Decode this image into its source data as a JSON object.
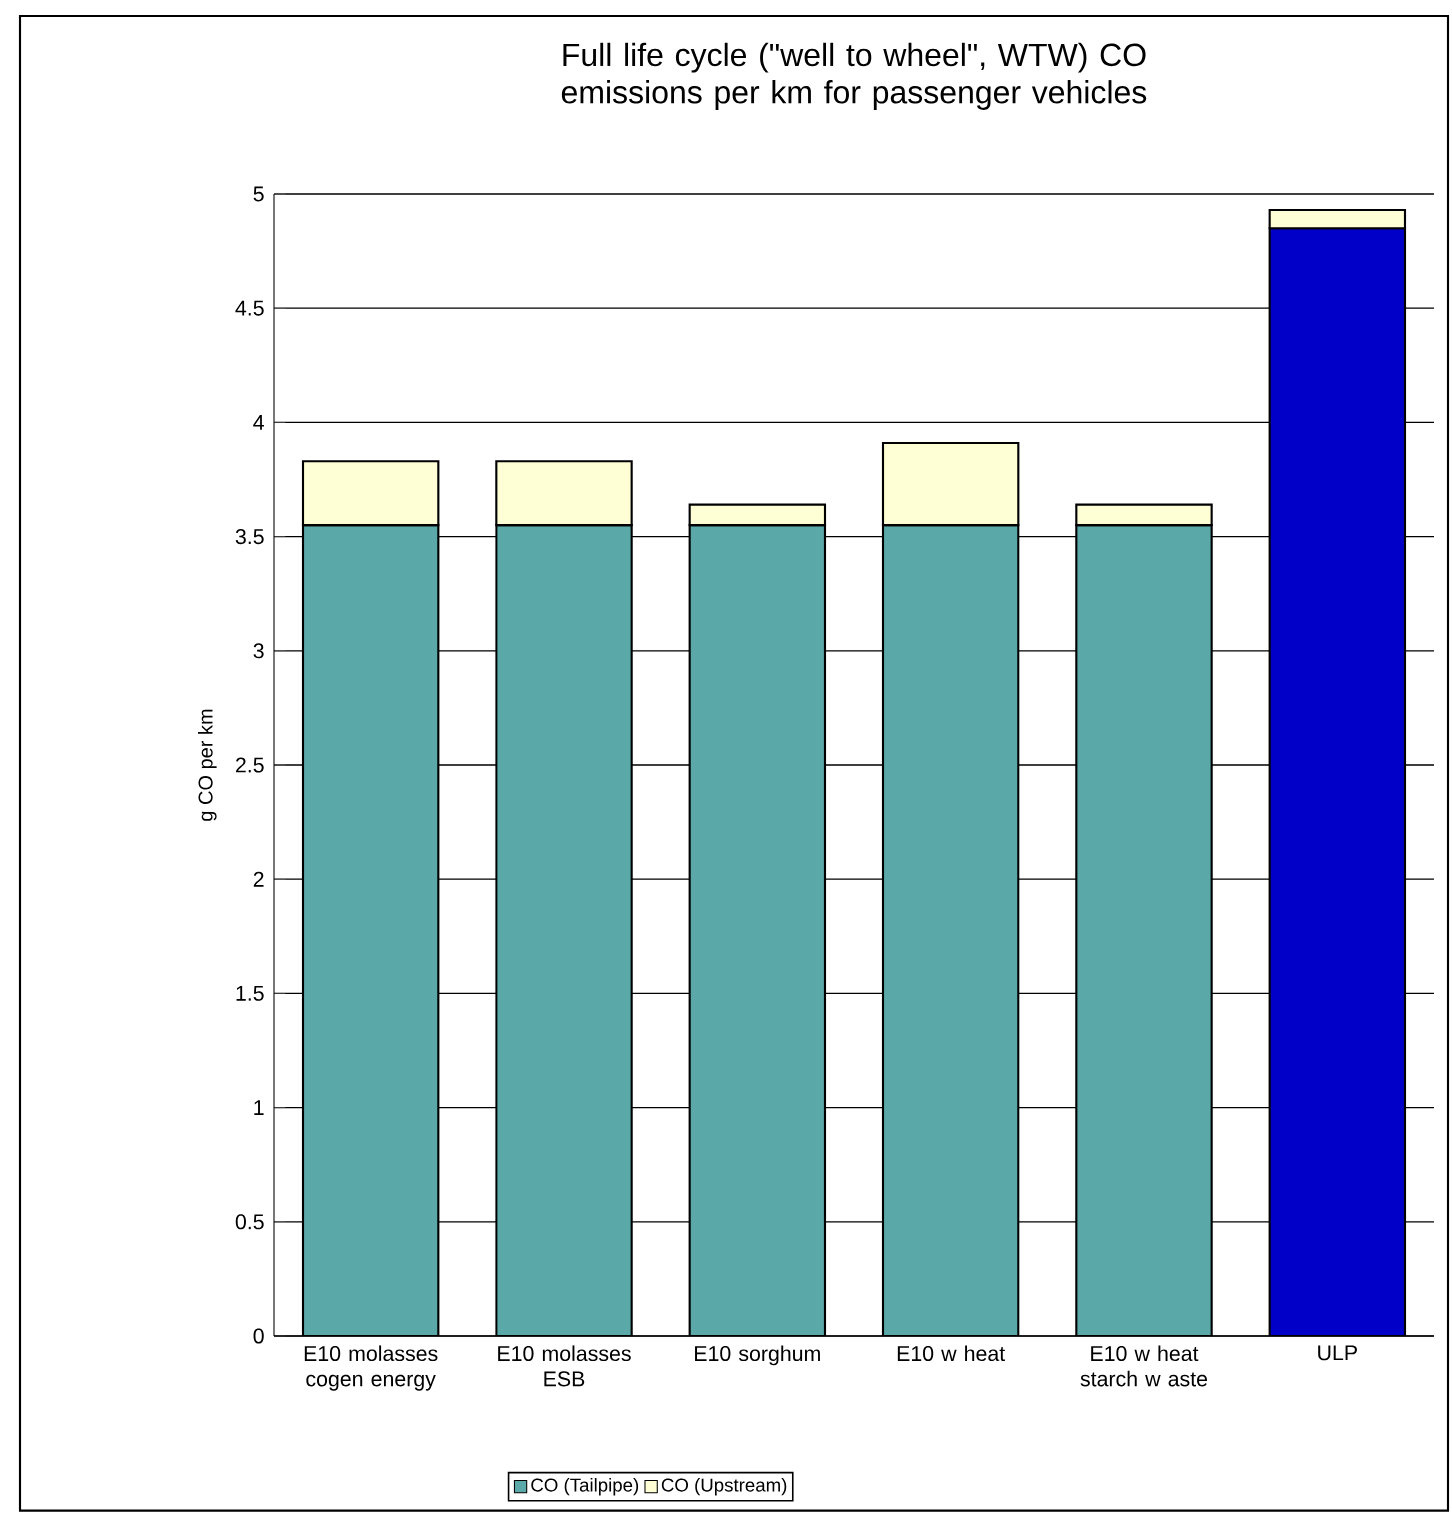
{
  "chart_data": {
    "type": "bar",
    "stacked": true,
    "title": "Full life cycle (\"well to wheel\", WTW) CO emissions per km for passenger vehicles",
    "ylabel": "g CO per km",
    "categories": [
      "E10 molasses cogen energy",
      "E10 molasses ESB",
      "E10 sorghum",
      "E10 w heat",
      "E10 w heat starch w aste",
      "ULP"
    ],
    "series": [
      {
        "name": "CO (Tailpipe)",
        "colors": [
          "#5aa8a8",
          "#5aa8a8",
          "#5aa8a8",
          "#5aa8a8",
          "#5aa8a8",
          "#0000c8"
        ],
        "values": [
          3.55,
          3.55,
          3.55,
          3.55,
          3.55,
          4.85
        ]
      },
      {
        "name": "CO (Upstream)",
        "color": "#ffffd6",
        "values": [
          0.28,
          0.28,
          0.09,
          0.36,
          0.09,
          0.08
        ]
      }
    ],
    "ylim": [
      0,
      5
    ],
    "yticks": [
      0,
      0.5,
      1,
      1.5,
      2,
      2.5,
      3,
      3.5,
      4,
      4.5,
      5
    ],
    "grid": "y",
    "legend": "bottom"
  }
}
